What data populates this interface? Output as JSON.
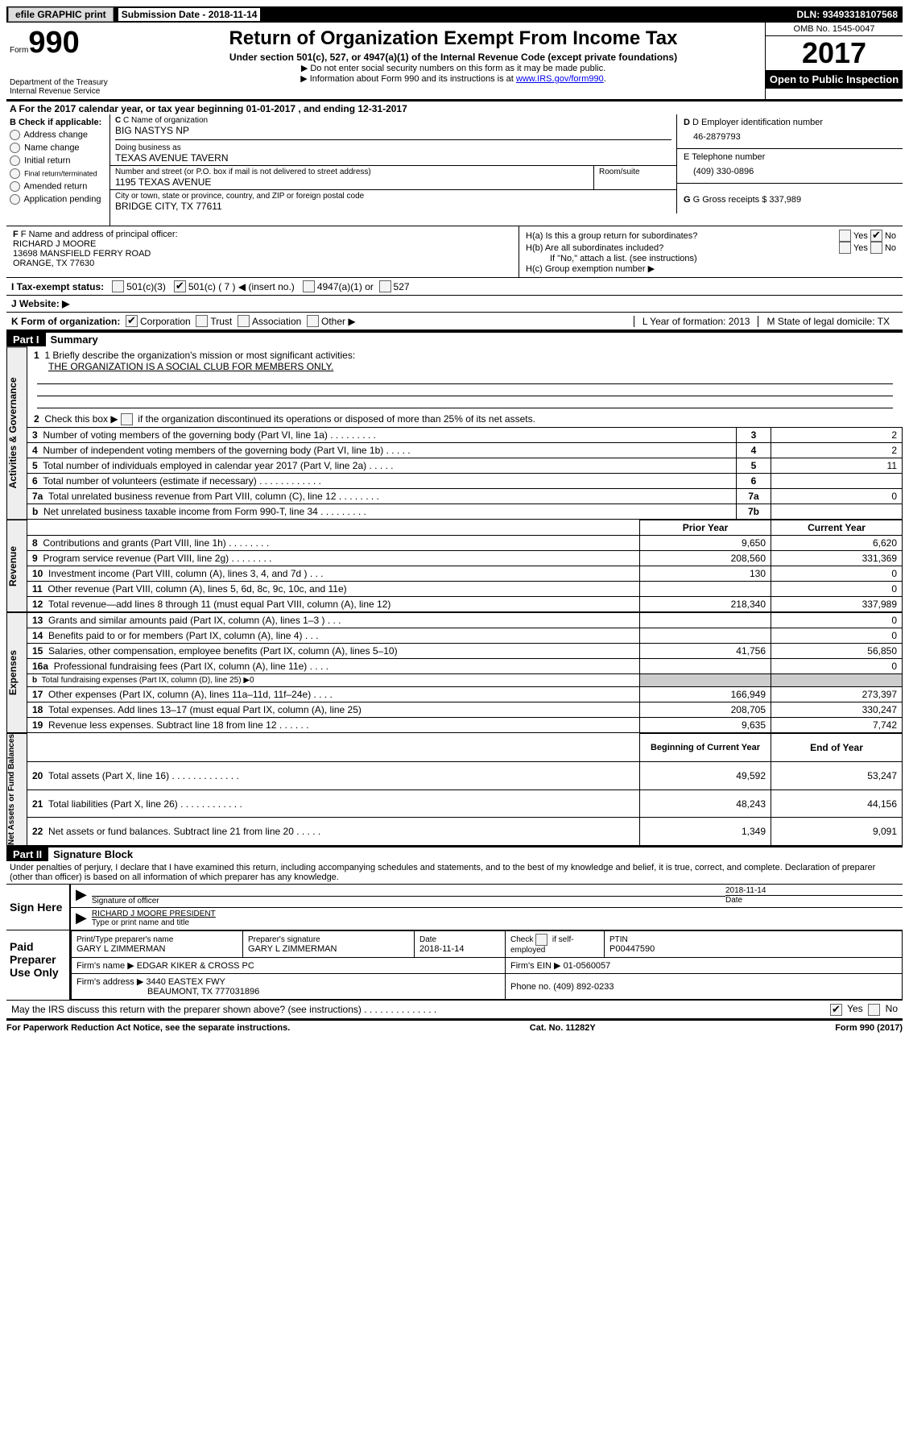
{
  "topbar": {
    "efile": "efile GRAPHIC print",
    "submission_label": "Submission Date -",
    "submission_date": "2018-11-14",
    "dln_label": "DLN:",
    "dln": "93493318107568"
  },
  "header": {
    "form_prefix": "Form",
    "form_number": "990",
    "dept": "Department of the Treasury",
    "irs": "Internal Revenue Service",
    "title": "Return of Organization Exempt From Income Tax",
    "subtitle": "Under section 501(c), 527, or 4947(a)(1) of the Internal Revenue Code (except private foundations)",
    "note1": "▶ Do not enter social security numbers on this form as it may be made public.",
    "note2": "▶ Information about Form 990 and its instructions is at",
    "link": "www.IRS.gov/form990",
    "omb": "OMB No. 1545-0047",
    "year": "2017",
    "open": "Open to Public Inspection"
  },
  "sectionA": {
    "text": "A  For the 2017 calendar year, or tax year beginning 01-01-2017    , and ending 12-31-2017"
  },
  "sectionB": {
    "label": "B Check if applicable:",
    "items": [
      "Address change",
      "Name change",
      "Initial return",
      "Final return/terminated",
      "Amended return",
      "Application pending"
    ]
  },
  "sectionC": {
    "name_label": "C Name of organization",
    "name": "BIG NASTYS NP",
    "dba_label": "Doing business as",
    "dba": "TEXAS AVENUE TAVERN",
    "addr_label": "Number and street (or P.O. box if mail is not delivered to street address)",
    "room_label": "Room/suite",
    "addr": "1195 TEXAS AVENUE",
    "city_label": "City or town, state or province, country, and ZIP or foreign postal code",
    "city": "BRIDGE CITY, TX  77611"
  },
  "sectionD": {
    "ein_label": "D Employer identification number",
    "ein": "46-2879793",
    "phone_label": "E Telephone number",
    "phone": "(409) 330-0896",
    "gross_label": "G Gross receipts $",
    "gross": "337,989"
  },
  "sectionF": {
    "label": "F Name and address of principal officer:",
    "name": "RICHARD J MOORE",
    "addr1": "13698 MANSFIELD FERRY ROAD",
    "addr2": "ORANGE, TX  77630"
  },
  "sectionH": {
    "a": "H(a)  Is this a group return for subordinates?",
    "b": "H(b)  Are all subordinates included?",
    "b_note": "If \"No,\" attach a list. (see instructions)",
    "c": "H(c)  Group exemption number ▶",
    "yes": "Yes",
    "no": "No"
  },
  "sectionI": {
    "label": "I  Tax-exempt status:",
    "o1": "501(c)(3)",
    "o2": "501(c) ( 7 ) ◀ (insert no.)",
    "o3": "4947(a)(1) or",
    "o4": "527"
  },
  "sectionJ": {
    "label": "J  Website: ▶"
  },
  "sectionK": {
    "label": "K Form of organization:",
    "o1": "Corporation",
    "o2": "Trust",
    "o3": "Association",
    "o4": "Other ▶",
    "l": "L Year of formation: 2013",
    "m": "M State of legal domicile: TX"
  },
  "part1": {
    "header": "Part I",
    "title": "Summary",
    "q1": "1  Briefly describe the organization's mission or most significant activities:",
    "mission": "THE ORGANIZATION IS A SOCIAL CLUB FOR MEMBERS ONLY.",
    "q2": "2   Check this box ▶        if the organization discontinued its operations or disposed of more than 25% of its net assets.",
    "vlabels": {
      "gov": "Activities & Governance",
      "rev": "Revenue",
      "exp": "Expenses",
      "net": "Net Assets or Fund Balances"
    },
    "gov_rows": [
      {
        "n": "3",
        "desc": "Number of voting members of the governing body (Part VI, line 1a)  .  .  .  .  .  .  .  .  .",
        "box": "3",
        "val": "2"
      },
      {
        "n": "4",
        "desc": "Number of independent voting members of the governing body (Part VI, line 1b)  .  .  .  .  .",
        "box": "4",
        "val": "2"
      },
      {
        "n": "5",
        "desc": "Total number of individuals employed in calendar year 2017 (Part V, line 2a)  .  .  .  .  .",
        "box": "5",
        "val": "11"
      },
      {
        "n": "6",
        "desc": "Total number of volunteers (estimate if necessary)  .  .  .  .  .  .  .  .  .  .  .  .",
        "box": "6",
        "val": ""
      },
      {
        "n": "7a",
        "desc": "Total unrelated business revenue from Part VIII, column (C), line 12  .  .  .  .  .  .  .  .",
        "box": "7a",
        "val": "0"
      },
      {
        "n": "b",
        "desc": "Net unrelated business taxable income from Form 990-T, line 34  .  .  .  .  .  .  .  .  .",
        "box": "7b",
        "val": ""
      }
    ],
    "col_headers": {
      "prior": "Prior Year",
      "current": "Current Year"
    },
    "rev_rows": [
      {
        "n": "8",
        "desc": "Contributions and grants (Part VIII, line 1h)  .  .  .  .  .  .  .  .",
        "p": "9,650",
        "c": "6,620"
      },
      {
        "n": "9",
        "desc": "Program service revenue (Part VIII, line 2g)  .  .  .  .  .  .  .  .",
        "p": "208,560",
        "c": "331,369"
      },
      {
        "n": "10",
        "desc": "Investment income (Part VIII, column (A), lines 3, 4, and 7d )  .  .  .",
        "p": "130",
        "c": "0"
      },
      {
        "n": "11",
        "desc": "Other revenue (Part VIII, column (A), lines 5, 6d, 8c, 9c, 10c, and 11e)",
        "p": "",
        "c": "0"
      },
      {
        "n": "12",
        "desc": "Total revenue—add lines 8 through 11 (must equal Part VIII, column (A), line 12)",
        "p": "218,340",
        "c": "337,989"
      }
    ],
    "exp_rows": [
      {
        "n": "13",
        "desc": "Grants and similar amounts paid (Part IX, column (A), lines 1–3 )  .  .  .",
        "p": "",
        "c": "0"
      },
      {
        "n": "14",
        "desc": "Benefits paid to or for members (Part IX, column (A), line 4)  .  .  .",
        "p": "",
        "c": "0"
      },
      {
        "n": "15",
        "desc": "Salaries, other compensation, employee benefits (Part IX, column (A), lines 5–10)",
        "p": "41,756",
        "c": "56,850"
      },
      {
        "n": "16a",
        "desc": "Professional fundraising fees (Part IX, column (A), line 11e)  .  .  .  .",
        "p": "",
        "c": "0"
      },
      {
        "n": "b",
        "desc": "Total fundraising expenses (Part IX, column (D), line 25) ▶0",
        "p": "shade",
        "c": "shade"
      },
      {
        "n": "17",
        "desc": "Other expenses (Part IX, column (A), lines 11a–11d, 11f–24e)  .  .  .  .",
        "p": "166,949",
        "c": "273,397"
      },
      {
        "n": "18",
        "desc": "Total expenses. Add lines 13–17 (must equal Part IX, column (A), line 25)",
        "p": "208,705",
        "c": "330,247"
      },
      {
        "n": "19",
        "desc": "Revenue less expenses. Subtract line 18 from line 12  .  .  .  .  .  .",
        "p": "9,635",
        "c": "7,742"
      }
    ],
    "net_headers": {
      "begin": "Beginning of Current Year",
      "end": "End of Year"
    },
    "net_rows": [
      {
        "n": "20",
        "desc": "Total assets (Part X, line 16)  .  .  .  .  .  .  .  .  .  .  .  .  .",
        "p": "49,592",
        "c": "53,247"
      },
      {
        "n": "21",
        "desc": "Total liabilities (Part X, line 26)  .  .  .  .  .  .  .  .  .  .  .  .",
        "p": "48,243",
        "c": "44,156"
      },
      {
        "n": "22",
        "desc": "Net assets or fund balances. Subtract line 21 from line 20 .  .  .  .  .",
        "p": "1,349",
        "c": "9,091"
      }
    ]
  },
  "part2": {
    "header": "Part II",
    "title": "Signature Block",
    "perjury": "Under penalties of perjury, I declare that I have examined this return, including accompanying schedules and statements, and to the best of my knowledge and belief, it is true, correct, and complete. Declaration of preparer (other than officer) is based on all information of which preparer has any knowledge.",
    "sign_here": "Sign Here",
    "sig_officer": "Signature of officer",
    "sig_date": "2018-11-14",
    "date_label": "Date",
    "officer_name": "RICHARD J MOORE PRESIDENT",
    "type_label": "Type or print name and title",
    "paid": "Paid Preparer Use Only",
    "prep_name_label": "Print/Type preparer's name",
    "prep_name": "GARY L ZIMMERMAN",
    "prep_sig_label": "Preparer's signature",
    "prep_sig": "GARY L ZIMMERMAN",
    "prep_date_label": "Date",
    "prep_date": "2018-11-14",
    "check_self": "Check         if self-employed",
    "ptin_label": "PTIN",
    "ptin": "P00447590",
    "firm_name_label": "Firm's name      ▶",
    "firm_name": "EDGAR KIKER & CROSS PC",
    "firm_ein_label": "Firm's EIN ▶",
    "firm_ein": "01-0560057",
    "firm_addr_label": "Firm's address ▶",
    "firm_addr1": "3440 EASTEX FWY",
    "firm_addr2": "BEAUMONT, TX  777031896",
    "firm_phone_label": "Phone no.",
    "firm_phone": "(409) 892-0233",
    "discuss": "May the IRS discuss this return with the preparer shown above? (see instructions)  .  .  .  .  .  .  .  .  .  .  .  .  .  .",
    "yes": "Yes",
    "no": "No"
  },
  "footer": {
    "left": "For Paperwork Reduction Act Notice, see the separate instructions.",
    "mid": "Cat. No. 11282Y",
    "right": "Form 990 (2017)"
  }
}
